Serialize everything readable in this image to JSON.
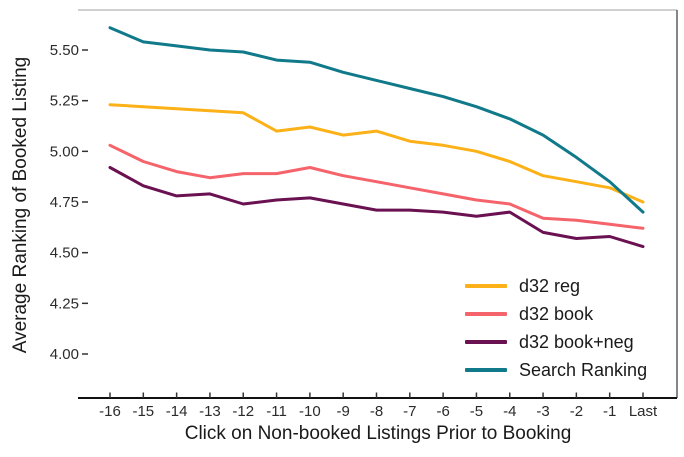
{
  "chart_data": {
    "type": "line",
    "categories": [
      "-16",
      "-15",
      "-14",
      "-13",
      "-12",
      "-11",
      "-10",
      "-9",
      "-8",
      "-7",
      "-6",
      "-5",
      "-4",
      "-3",
      "-2",
      "-1",
      "Last"
    ],
    "series": [
      {
        "name": "d32 reg",
        "color": "#FBB117",
        "values": [
          5.23,
          5.22,
          5.21,
          5.2,
          5.19,
          5.1,
          5.12,
          5.08,
          5.1,
          5.05,
          5.03,
          5.0,
          4.95,
          4.88,
          4.85,
          4.82,
          4.75
        ]
      },
      {
        "name": "d32 book",
        "color": "#F5636B",
        "values": [
          5.03,
          4.95,
          4.9,
          4.87,
          4.89,
          4.89,
          4.92,
          4.88,
          4.85,
          4.82,
          4.79,
          4.76,
          4.74,
          4.67,
          4.66,
          4.64,
          4.62
        ]
      },
      {
        "name": "d32 book+neg",
        "color": "#6A1152",
        "values": [
          4.92,
          4.83,
          4.78,
          4.79,
          4.74,
          4.76,
          4.77,
          4.74,
          4.71,
          4.71,
          4.7,
          4.68,
          4.7,
          4.6,
          4.57,
          4.58,
          4.53
        ]
      },
      {
        "name": "Search Ranking",
        "color": "#10798A",
        "values": [
          5.61,
          5.54,
          5.52,
          5.5,
          5.49,
          5.45,
          5.44,
          5.39,
          5.35,
          5.31,
          5.27,
          5.22,
          5.16,
          5.08,
          4.97,
          4.85,
          4.7
        ]
      }
    ],
    "title": "",
    "xlabel": "Click on Non-booked Listings Prior to Booking",
    "ylabel": "Average Ranking of Booked Listing",
    "ytick_labels": [
      "4.00",
      "4.25",
      "4.50",
      "4.75",
      "5.00",
      "5.25",
      "5.50"
    ],
    "yticks": [
      4.0,
      4.25,
      4.5,
      4.75,
      5.0,
      5.25,
      5.5
    ],
    "ylim": [
      3.78,
      5.7
    ],
    "grid": false,
    "legend_position": "inside-bottom-right"
  },
  "colors": {
    "background": "#ffffff",
    "axis_line": "#111111",
    "tick_mark": "#333333",
    "panel_border_top": "#c0c0c0",
    "panel_border_right": "#5f5f5f",
    "text": "#1a1a1a"
  }
}
